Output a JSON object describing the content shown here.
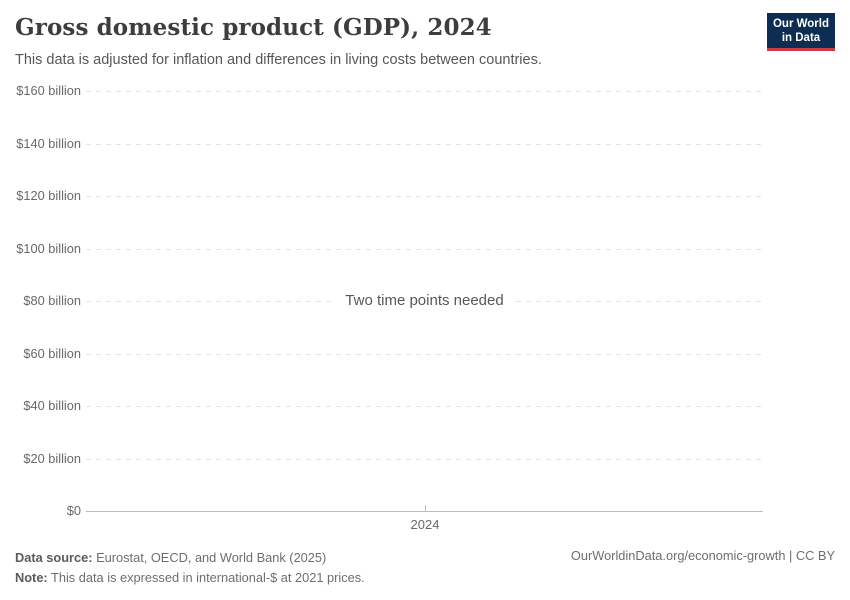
{
  "header": {
    "title": "Gross domestic product (GDP), 2024",
    "subtitle": "This data is adjusted for inflation and differences in living costs between countries.",
    "logo": {
      "line1": "Our World",
      "line2": "in Data"
    }
  },
  "chart_data": {
    "type": "line",
    "title": "Gross domestic product (GDP), 2024",
    "series": [],
    "empty_state_message": "Two time points needed",
    "x_tick_labels": [
      "2024"
    ],
    "x": [
      2024
    ],
    "ylabel": "",
    "ylim_billions": [
      0,
      160
    ],
    "y_unit": "international-$ (billions)",
    "grid": "horizontal dashed gridlines, solid baseline at $0",
    "legend": "none",
    "y_ticks": [
      {
        "value_billions": 160,
        "label": "$160 billion"
      },
      {
        "value_billions": 140,
        "label": "$140 billion"
      },
      {
        "value_billions": 120,
        "label": "$120 billion"
      },
      {
        "value_billions": 100,
        "label": "$100 billion"
      },
      {
        "value_billions": 80,
        "label": "$80 billion"
      },
      {
        "value_billions": 60,
        "label": "$60 billion"
      },
      {
        "value_billions": 40,
        "label": "$40 billion"
      },
      {
        "value_billions": 20,
        "label": "$20 billion"
      },
      {
        "value_billions": 0,
        "label": "$0"
      }
    ]
  },
  "footer": {
    "datasource_label": "Data source:",
    "datasource_text": " Eurostat, OECD, and World Bank (2025)",
    "note_label": "Note:",
    "note_text": " This data is expressed in international-$ at 2021 prices.",
    "link": "OurWorldinData.org/economic-growth | CC BY"
  },
  "colors": {
    "logo_bg": "#0d2d52",
    "logo_red": "#cf3b44",
    "gridline": "#e4e4e4",
    "axis_line": "#bcbcbc",
    "text_gray": "#696969",
    "title_color": "#3d3d3d"
  }
}
